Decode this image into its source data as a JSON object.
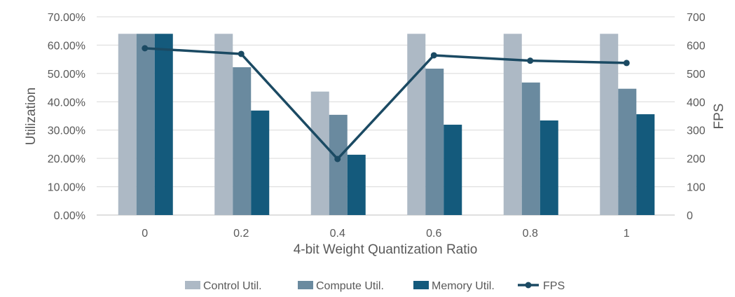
{
  "chart_data": {
    "type": "bar+line",
    "title": "",
    "xlabel": "4-bit Weight Quantization Ratio",
    "ylabel": "Utilization",
    "y2label": "FPS",
    "categories": [
      "0",
      "0.2",
      "0.4",
      "0.6",
      "0.8",
      "1"
    ],
    "ylim": [
      0,
      70
    ],
    "y2lim": [
      0,
      700
    ],
    "yticks": [
      "0.00%",
      "10.00%",
      "20.00%",
      "30.00%",
      "40.00%",
      "50.00%",
      "60.00%",
      "70.00%"
    ],
    "y2ticks": [
      "0",
      "100",
      "200",
      "300",
      "400",
      "500",
      "600",
      "700"
    ],
    "grid": true,
    "legend_position": "bottom",
    "series": [
      {
        "name": "Control Util.",
        "type": "bar",
        "axis": "left",
        "color": "#adb9c5",
        "values": [
          64,
          64,
          43.6,
          64,
          64,
          64
        ]
      },
      {
        "name": "Compute Util.",
        "type": "bar",
        "axis": "left",
        "color": "#6a8a9f",
        "values": [
          64,
          52.2,
          35.4,
          51.7,
          46.8,
          44.6
        ]
      },
      {
        "name": "Memory Util.",
        "type": "bar",
        "axis": "left",
        "color": "#145a7c",
        "values": [
          64,
          36.9,
          21.3,
          31.9,
          33.4,
          35.6
        ]
      },
      {
        "name": "FPS",
        "type": "line",
        "axis": "right",
        "color": "#1b4a63",
        "values": [
          589,
          569,
          198,
          564,
          545,
          537
        ]
      }
    ]
  }
}
